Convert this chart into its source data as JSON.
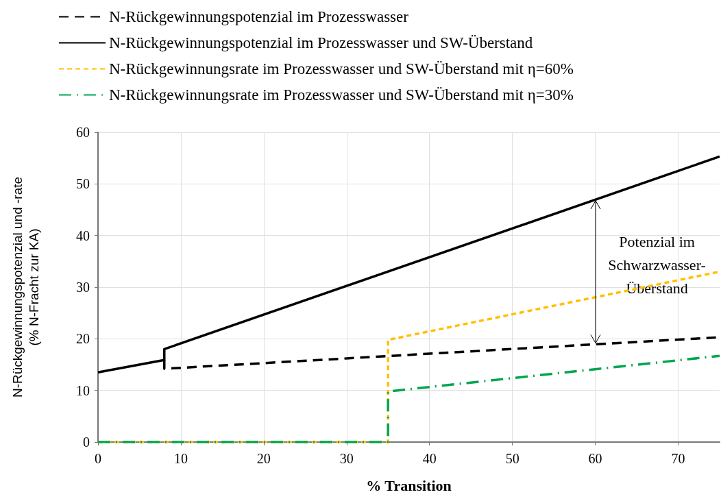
{
  "chart_data": {
    "type": "line",
    "xlabel": "% Transition",
    "ylabel": "N-Rückgewinnungspotenzial und -rate\n(% N-Fracht zur KA)",
    "xlim": [
      0,
      75
    ],
    "xticks": [
      0,
      10,
      20,
      30,
      40,
      50,
      60,
      70
    ],
    "ylim": [
      0,
      60
    ],
    "yticks": [
      0,
      10,
      20,
      30,
      40,
      50,
      60
    ],
    "grid": true,
    "legend": "top left",
    "marker": "none",
    "series": [
      {
        "name": "N-Rückgewinnungspotenzial im Prozesswasser",
        "color": "#000000",
        "line_style": "dashed",
        "x": [
          8,
          8,
          75
        ],
        "values": [
          15.9,
          14.2,
          20.3
        ]
      },
      {
        "name": "N-Rückgewinnungspotenzial im Prozesswasser und SW-Überstand",
        "color": "#000000",
        "line_style": "solid",
        "x": [
          0,
          8,
          8,
          75
        ],
        "values": [
          13.5,
          15.9,
          18,
          55.3
        ]
      },
      {
        "name": "N-Rückgewinnungsrate im Prozesswasser und SW-Überstand mit η=60%",
        "color": "#ffc000",
        "line_style": "dotted",
        "x": [
          0,
          35,
          35,
          75
        ],
        "values": [
          0,
          0,
          19.8,
          33
        ]
      },
      {
        "name": "N-Rückgewinnungsrate im Prozesswasser und SW-Überstand mit η=30%",
        "color": "#00a550",
        "line_style": "dashdot",
        "x": [
          0,
          35,
          35,
          75
        ],
        "values": [
          0,
          0,
          9.8,
          16.7
        ]
      }
    ],
    "annotations": [
      {
        "text": "Potenzial im\nSchwarzwasser-\nÜberstand",
        "x": 60,
        "y": 47
      }
    ]
  }
}
